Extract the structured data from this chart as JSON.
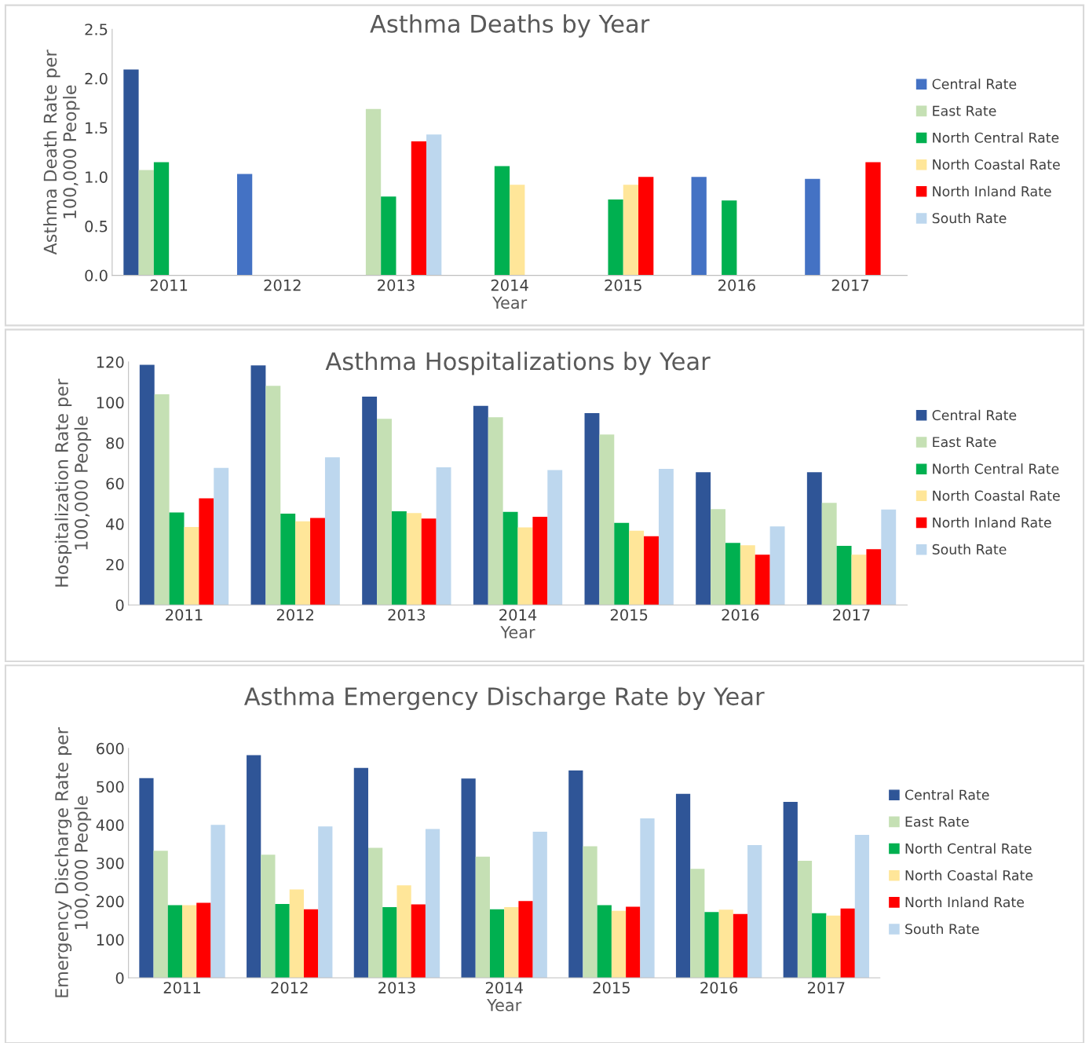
{
  "chart_data": [
    {
      "type": "bar",
      "title": "Asthma Deaths by Year",
      "xlabel": "Year",
      "ylabel": "Asthma Death Rate per\n100,000 People",
      "categories": [
        "2011",
        "2012",
        "2013",
        "2014",
        "2015",
        "2016",
        "2017"
      ],
      "ylim": [
        0,
        2.5
      ],
      "yticks": [
        {
          "value": 0,
          "label": "0.0"
        },
        {
          "value": 0.5,
          "label": "0.5"
        },
        {
          "value": 1,
          "label": "1.0"
        },
        {
          "value": 1.5,
          "label": "1.5"
        },
        {
          "value": 2,
          "label": "2.0"
        },
        {
          "value": 2.5,
          "label": "2.5"
        }
      ],
      "grid": false,
      "legend": "right",
      "series": [
        {
          "name": "Central Rate",
          "color": "#4472c4",
          "colors": [
            "#2f5597",
            "#4472c4",
            "#4472c4",
            "#4472c4",
            "#4472c4",
            "#4472c4",
            "#4472c4"
          ],
          "values": [
            2.09,
            1.03,
            null,
            null,
            null,
            1.0,
            0.98
          ]
        },
        {
          "name": "East Rate",
          "color": "#c5e0b4",
          "values": [
            1.07,
            null,
            1.69,
            null,
            null,
            null,
            null
          ]
        },
        {
          "name": "North Central Rate",
          "color": "#00b050",
          "values": [
            1.15,
            null,
            0.8,
            1.11,
            0.77,
            0.76,
            null
          ]
        },
        {
          "name": "North Coastal Rate",
          "color": "#ffe699",
          "values": [
            null,
            null,
            null,
            0.92,
            0.92,
            null,
            null
          ]
        },
        {
          "name": "North Inland Rate",
          "color": "#ff0000",
          "values": [
            null,
            null,
            1.36,
            null,
            1.0,
            null,
            1.15
          ]
        },
        {
          "name": "South Rate",
          "color": "#bdd7ee",
          "values": [
            null,
            null,
            1.43,
            null,
            null,
            null,
            null
          ]
        }
      ]
    },
    {
      "type": "bar",
      "title": "Asthma Hospitalizations by Year",
      "xlabel": "Year",
      "ylabel": "Hospitalization Rate per\n100,000 People",
      "categories": [
        "2011",
        "2012",
        "2013",
        "2014",
        "2015",
        "2016",
        "2017"
      ],
      "ylim": [
        0,
        120
      ],
      "yticks": [
        0,
        20,
        40,
        60,
        80,
        100,
        120
      ],
      "grid": false,
      "legend": "right",
      "series": [
        {
          "name": "Central Rate",
          "color": "#2f5597",
          "values": [
            118.6,
            118.3,
            102.9,
            98.3,
            94.7,
            65.5,
            65.5
          ]
        },
        {
          "name": "East Rate",
          "color": "#c5e0b4",
          "values": [
            104,
            108.2,
            91.9,
            92.7,
            84.2,
            47.3,
            50.4
          ]
        },
        {
          "name": "North Central Rate",
          "color": "#00b050",
          "values": [
            45.7,
            45.1,
            46.2,
            46,
            40.5,
            30.6,
            29.2
          ]
        },
        {
          "name": "North Coastal Rate",
          "color": "#ffe699",
          "values": [
            38.5,
            41.3,
            45.4,
            38.3,
            36.6,
            29.5,
            24.8
          ]
        },
        {
          "name": "North Inland Rate",
          "color": "#ff0000",
          "values": [
            52.6,
            42.9,
            42.7,
            43.5,
            33.9,
            24.8,
            27.5
          ]
        },
        {
          "name": "South Rate",
          "color": "#bdd7ee",
          "values": [
            67.7,
            72.9,
            68,
            66.6,
            67.2,
            38.8,
            47.1
          ]
        }
      ]
    },
    {
      "type": "bar",
      "title": "Asthma Emergency Discharge Rate by Year",
      "xlabel": "Year",
      "ylabel": "Emergency Discharge Rate per\n100,000 People",
      "categories": [
        "2011",
        "2012",
        "2013",
        "2014",
        "2015",
        "2016",
        "2017"
      ],
      "ylim": [
        0,
        600
      ],
      "yticks": [
        0,
        100,
        200,
        300,
        400,
        500,
        600
      ],
      "grid": false,
      "legend": "right",
      "series": [
        {
          "name": "Central Rate",
          "color": "#2f5597",
          "values": [
            522,
            582,
            549,
            521,
            542,
            481,
            460
          ]
        },
        {
          "name": "East Rate",
          "color": "#c5e0b4",
          "values": [
            332,
            322,
            340,
            317,
            344,
            285,
            306
          ]
        },
        {
          "name": "North Central Rate",
          "color": "#00b050",
          "values": [
            190,
            193,
            185,
            179,
            190,
            172,
            169
          ]
        },
        {
          "name": "North Coastal Rate",
          "color": "#ffe699",
          "values": [
            190,
            231,
            242,
            185,
            175,
            178,
            163
          ]
        },
        {
          "name": "North Inland Rate",
          "color": "#ff0000",
          "values": [
            196,
            179,
            192,
            201,
            186,
            167,
            181
          ]
        },
        {
          "name": "South Rate",
          "color": "#bdd7ee",
          "values": [
            400,
            396,
            389,
            382,
            417,
            347,
            374
          ]
        }
      ]
    }
  ]
}
